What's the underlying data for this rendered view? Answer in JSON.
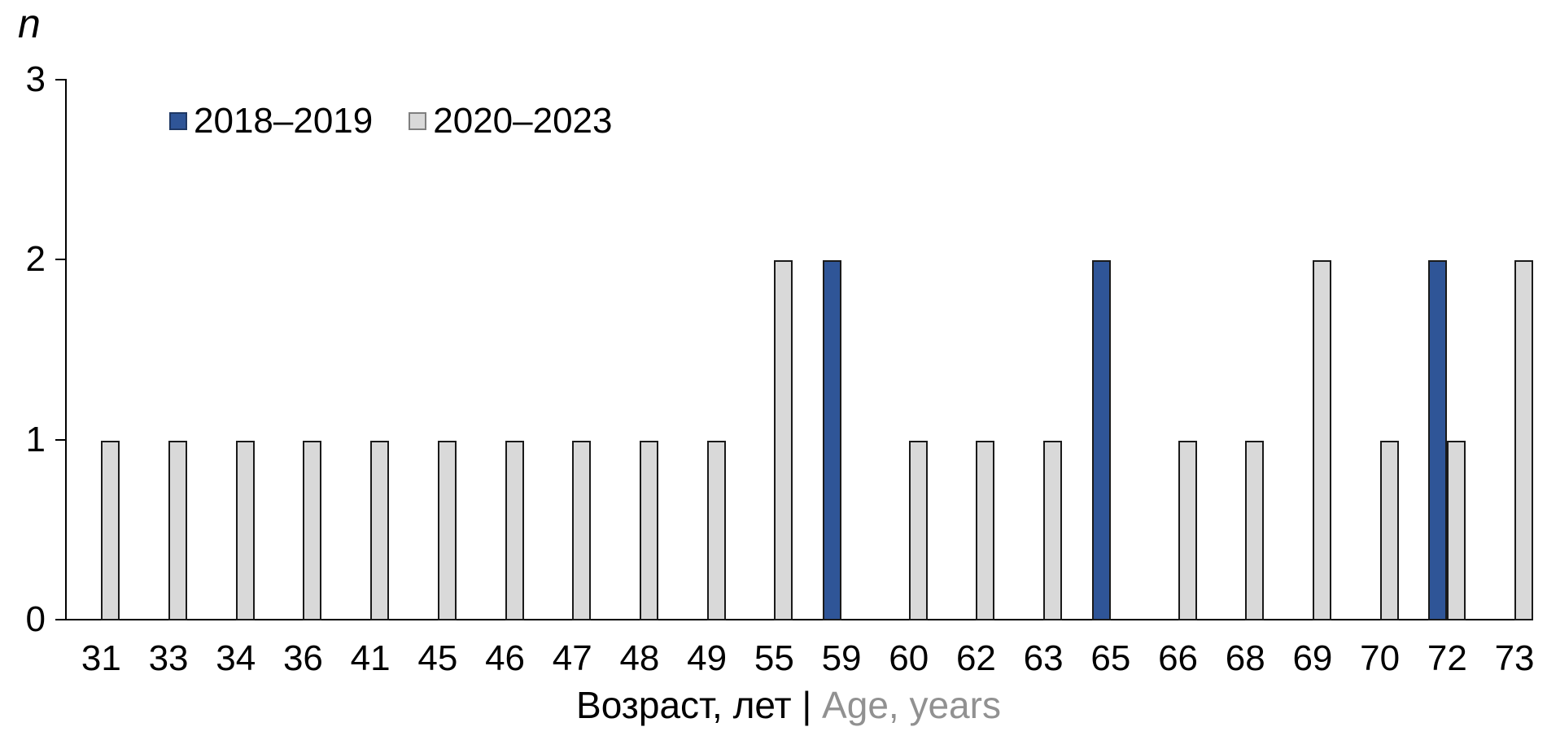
{
  "chart_data": {
    "type": "bar",
    "title": "",
    "ylabel": "n",
    "xlabel_ru": "Возраст, лет",
    "xlabel_sep": " | ",
    "xlabel_en": "Age, years",
    "categories": [
      31,
      33,
      34,
      36,
      41,
      45,
      46,
      47,
      48,
      49,
      55,
      59,
      60,
      62,
      63,
      65,
      66,
      68,
      69,
      70,
      72,
      73
    ],
    "series": [
      {
        "name": "2018–2019",
        "color": "#2F5597",
        "values": [
          0,
          0,
          0,
          0,
          0,
          0,
          0,
          0,
          0,
          0,
          0,
          2,
          0,
          0,
          0,
          2,
          0,
          0,
          0,
          0,
          2,
          0
        ]
      },
      {
        "name": "2020–2023",
        "color": "#D9D9D9",
        "values": [
          1,
          1,
          1,
          1,
          1,
          1,
          1,
          1,
          1,
          1,
          2,
          0,
          1,
          1,
          1,
          0,
          1,
          1,
          2,
          1,
          1,
          2
        ]
      }
    ],
    "yticks": [
      0,
      1,
      2,
      3
    ],
    "ylim": [
      0,
      3
    ],
    "grid": false,
    "legend_position": "top-left-inside",
    "colors": {
      "bar_blue": "#2F5597",
      "bar_gray": "#D9D9D9",
      "bar_border": "#1a1a1a",
      "axis": "#000000",
      "xlabel_en_gray": "#919191"
    }
  }
}
